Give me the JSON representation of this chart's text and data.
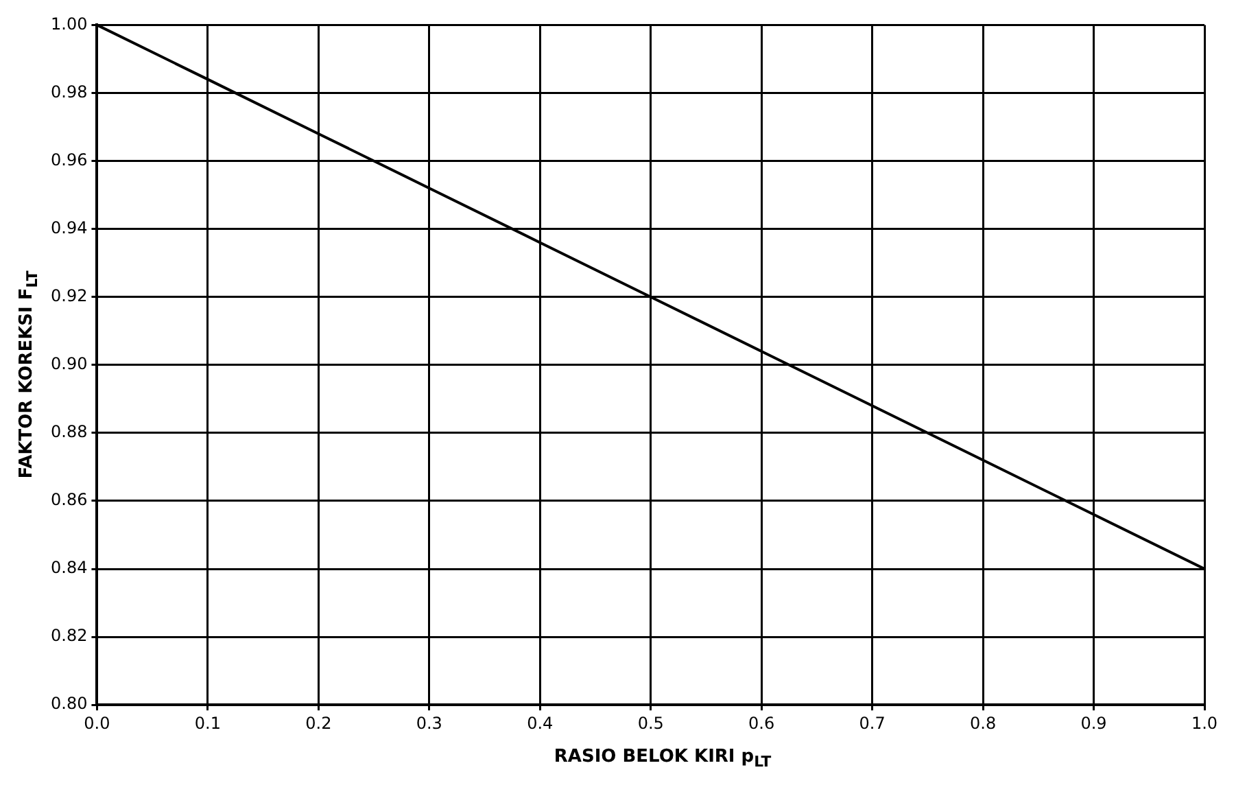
{
  "chart_data": {
    "type": "line",
    "xlabel": "RASIO BELOK KIRI p$_{LT}$",
    "ylabel": "FAKTOR KOREKSI F$_{LT}$",
    "x": [
      0,
      0.1,
      0.2,
      0.3,
      0.4,
      0.5,
      0.6,
      0.7,
      0.8,
      0.9,
      1.0
    ],
    "series": [
      {
        "color": "#000000",
        "values": [
          1.0,
          0.984,
          0.968,
          0.952,
          0.936,
          0.92,
          0.904,
          0.888,
          0.872,
          0.856,
          0.84
        ]
      }
    ],
    "xlim": [
      0,
      1
    ],
    "xticks": [
      {
        "value": 0,
        "label": "0.0"
      },
      0.1,
      0.2,
      0.3,
      0.4,
      0.5,
      0.6,
      0.7,
      0.8,
      0.9,
      {
        "value": 1,
        "label": "1.0"
      }
    ],
    "ylim": [
      0.8,
      1.0
    ],
    "yticks": [
      {
        "value": 0.8,
        "label": "0.80"
      },
      {
        "value": 0.82,
        "label": "0.82"
      },
      {
        "value": 0.84,
        "label": "0.84"
      },
      {
        "value": 0.86,
        "label": "0.86"
      },
      {
        "value": 0.88,
        "label": "0.88"
      },
      {
        "value": 0.9,
        "label": "0.90"
      },
      {
        "value": 0.92,
        "label": "0.92"
      },
      {
        "value": 0.94,
        "label": "0.94"
      },
      {
        "value": 0.96,
        "label": "0.96"
      },
      {
        "value": 0.98,
        "label": "0.98"
      },
      {
        "value": 1.0,
        "label": "1.00"
      }
    ],
    "grid": true,
    "marker": "none",
    "line_style": "solid",
    "legend": false
  }
}
